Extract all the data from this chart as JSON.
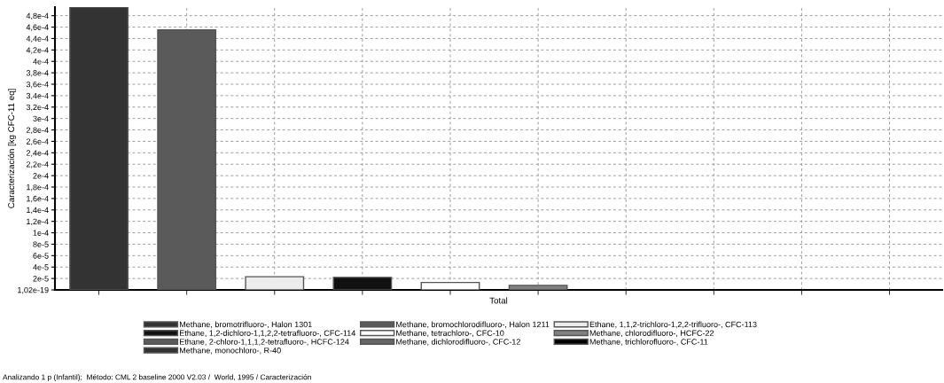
{
  "chart_data": {
    "type": "bar",
    "categories": [
      "Total"
    ],
    "ylabel": "Caracterización [kg CFC-11 eq]",
    "series": [
      {
        "name": "Methane, bromotrifluoro-, Halon 1301",
        "color": "#333333",
        "values": [
          0.000495
        ]
      },
      {
        "name": "Methane, bromochlorodifluoro-, Halon 1211",
        "color": "#5a5a5a",
        "values": [
          0.000455
        ]
      },
      {
        "name": "Ethane, 1,1,2-trichloro-1,2,2-trifluoro-, CFC-113",
        "color": "#ececec",
        "values": [
          2.3e-05
        ]
      },
      {
        "name": "Ethane, 1,2-dichloro-1,1,2,2-tetrafluoro-, CFC-114",
        "color": "#111111",
        "values": [
          2.2e-05
        ]
      },
      {
        "name": "Methane, tetrachloro-, CFC-10",
        "color": "#ffffff",
        "values": [
          1.3e-05
        ]
      },
      {
        "name": "Methane, chlorodifluoro-, HCFC-22",
        "color": "#808080",
        "values": [
          8e-06
        ]
      },
      {
        "name": "Ethane, 2-chloro-1,1,1,2-tetrafluoro-, HCFC-124",
        "color": "#5a5a5a",
        "values": [
          null
        ]
      },
      {
        "name": "Methane, dichlorodifluoro-, CFC-12",
        "color": "#666666",
        "values": [
          null
        ]
      },
      {
        "name": "Methane, trichlorofluoro-, CFC-11",
        "color": "#000000",
        "values": [
          null
        ]
      },
      {
        "name": "Methane, monochloro-, R-40",
        "color": "#333333",
        "values": [
          null
        ]
      }
    ],
    "ylim": [
      1.02e-19,
      0.000495
    ],
    "yticks": [
      {
        "value": 1.02e-19,
        "label": "1,02e-19"
      },
      {
        "value": 2e-05,
        "label": "2e-5"
      },
      {
        "value": 4e-05,
        "label": "4e-5"
      },
      {
        "value": 6e-05,
        "label": "6e-5"
      },
      {
        "value": 8e-05,
        "label": "8e-5"
      },
      {
        "value": 0.0001,
        "label": "1e-4"
      },
      {
        "value": 0.00012,
        "label": "1,2e-4"
      },
      {
        "value": 0.00014,
        "label": "1,4e-4"
      },
      {
        "value": 0.00016,
        "label": "1,6e-4"
      },
      {
        "value": 0.00018,
        "label": "1,8e-4"
      },
      {
        "value": 0.0002,
        "label": "2e-4"
      },
      {
        "value": 0.00022,
        "label": "2,2e-4"
      },
      {
        "value": 0.00024,
        "label": "2,4e-4"
      },
      {
        "value": 0.00026,
        "label": "2,6e-4"
      },
      {
        "value": 0.00028,
        "label": "2,8e-4"
      },
      {
        "value": 0.0003,
        "label": "3e-4"
      },
      {
        "value": 0.00032,
        "label": "3,2e-4"
      },
      {
        "value": 0.00034,
        "label": "3,4e-4"
      },
      {
        "value": 0.00036,
        "label": "3,6e-4"
      },
      {
        "value": 0.00038,
        "label": "3,8e-4"
      },
      {
        "value": 0.0004,
        "label": "4e-4"
      },
      {
        "value": 0.00042,
        "label": "4,2e-4"
      },
      {
        "value": 0.00044,
        "label": "4,4e-4"
      },
      {
        "value": 0.00046,
        "label": "4,6e-4"
      },
      {
        "value": 0.00048,
        "label": "4,8e-4"
      }
    ],
    "grid": true,
    "legend": "bottom",
    "annotations": [
      "Analizando 1 p (Infantil);  Método: CML 2 baseline 2000 V2.03 /  World, 1995 / Caracterización"
    ]
  }
}
